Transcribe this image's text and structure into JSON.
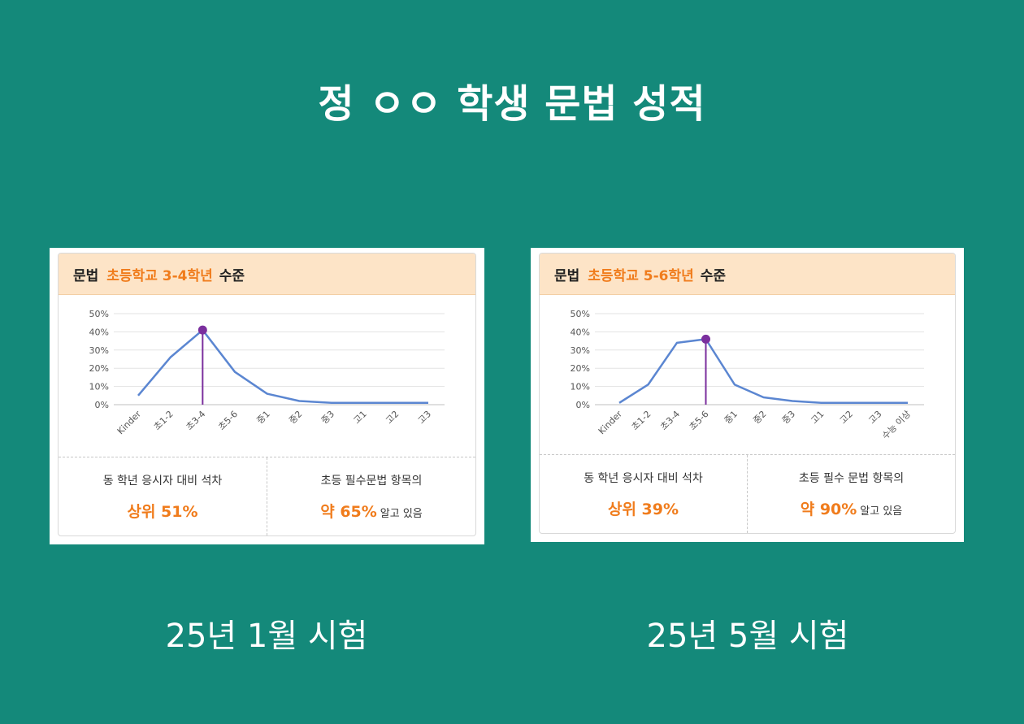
{
  "title": "정 ㅇㅇ 학생 문법 성적",
  "colors": {
    "background": "#14897a",
    "accent": "#f07c1c",
    "line": "#5b86d1",
    "marker": "#7b2f9e",
    "header_bg": "#fde4c7"
  },
  "cards": [
    {
      "header_prefix": "문법",
      "header_level": "초등학교 3-4학년",
      "header_suffix": "수준",
      "stat1_label": "동 학년 응시자 대비 석차",
      "stat1_value": "상위 51%",
      "stat2_label": "초등 필수문법 항목의",
      "stat2_value": "약 65%",
      "stat2_suffix": "알고 있음",
      "caption": "25년 1월 시험"
    },
    {
      "header_prefix": "문법",
      "header_level": "초등학교 5-6학년",
      "header_suffix": "수준",
      "stat1_label": "동 학년 응시자 대비 석차",
      "stat1_value": "상위 39%",
      "stat2_label": "초등 필수 문법 항목의",
      "stat2_value": "약 90%",
      "stat2_suffix": "알고 있음",
      "caption": "25년 5월 시험"
    }
  ],
  "chart_data": [
    {
      "type": "line",
      "categories": [
        "Kinder",
        "초1-2",
        "초3-4",
        "초5-6",
        "중1",
        "중2",
        "중3",
        "고1",
        "고2",
        "고3"
      ],
      "values": [
        5,
        26,
        41,
        18,
        6,
        2,
        1,
        1,
        1,
        1
      ],
      "marker_category": "초3-4",
      "y_ticks": [
        "0%",
        "10%",
        "20%",
        "30%",
        "40%",
        "50%"
      ],
      "ylim": [
        0,
        50
      ],
      "grid": true
    },
    {
      "type": "line",
      "categories": [
        "Kinder",
        "초1-2",
        "초3-4",
        "초5-6",
        "중1",
        "중2",
        "중3",
        "고1",
        "고2",
        "고3",
        "수능 이상"
      ],
      "values": [
        1,
        11,
        34,
        36,
        11,
        4,
        2,
        1,
        1,
        1,
        1
      ],
      "marker_category": "초5-6",
      "y_ticks": [
        "0%",
        "10%",
        "20%",
        "30%",
        "40%",
        "50%"
      ],
      "ylim": [
        0,
        50
      ],
      "grid": true
    }
  ]
}
